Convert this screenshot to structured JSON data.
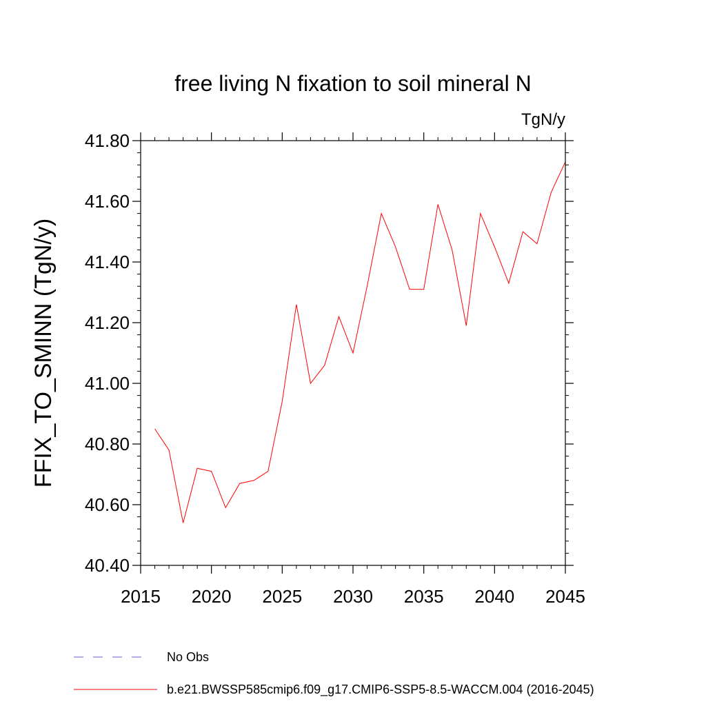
{
  "chart_data": {
    "type": "line",
    "title": "free living N fixation to soil mineral N",
    "units_label": "TgN/y",
    "ylabel": "FFIX_TO_SMINN  (TgN/y)",
    "xlabel": "",
    "xlim": [
      2015,
      2045
    ],
    "ylim": [
      40.4,
      41.8
    ],
    "x_ticks": [
      2015,
      2020,
      2025,
      2030,
      2035,
      2040,
      2045
    ],
    "x_tick_labels": [
      "2015",
      "2020",
      "2025",
      "2030",
      "2035",
      "2040",
      "2045"
    ],
    "y_ticks": [
      40.4,
      40.6,
      40.8,
      41.0,
      41.2,
      41.4,
      41.6,
      41.8
    ],
    "y_tick_labels": [
      "40.40",
      "40.60",
      "40.80",
      "41.00",
      "41.20",
      "41.40",
      "41.60",
      "41.80"
    ],
    "grid": false,
    "series": [
      {
        "name": "b.e21.BWSSP585cmip6.f09_g17.CMIP6-SSP5-8.5-WACCM.004 (2016-2045)",
        "color": "#ff0000",
        "style": "solid",
        "x": [
          2016,
          2017,
          2018,
          2019,
          2020,
          2021,
          2022,
          2023,
          2024,
          2025,
          2026,
          2027,
          2028,
          2029,
          2030,
          2031,
          2032,
          2033,
          2034,
          2035,
          2036,
          2037,
          2038,
          2039,
          2040,
          2041,
          2042,
          2043,
          2044,
          2045
        ],
        "values": [
          40.85,
          40.78,
          40.54,
          40.72,
          40.71,
          40.59,
          40.67,
          40.68,
          40.71,
          40.94,
          41.26,
          41.0,
          41.06,
          41.22,
          41.1,
          41.32,
          41.56,
          41.45,
          41.31,
          41.31,
          41.59,
          41.44,
          41.19,
          41.56,
          41.45,
          41.33,
          41.5,
          41.46,
          41.63,
          41.73
        ]
      }
    ],
    "legend": {
      "placement": "bottom-left",
      "entries": [
        {
          "label": "No Obs",
          "color": "#6a5acd",
          "style": "dashed"
        },
        {
          "label": "b.e21.BWSSP585cmip6.f09_g17.CMIP6-SSP5-8.5-WACCM.004 (2016-2045)",
          "color": "#ff0000",
          "style": "solid"
        }
      ]
    }
  }
}
